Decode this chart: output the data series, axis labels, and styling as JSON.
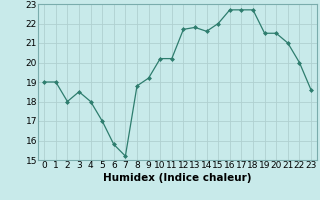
{
  "x": [
    0,
    1,
    2,
    3,
    4,
    5,
    6,
    7,
    8,
    9,
    10,
    11,
    12,
    13,
    14,
    15,
    16,
    17,
    18,
    19,
    20,
    21,
    22,
    23
  ],
  "y": [
    19.0,
    19.0,
    18.0,
    18.5,
    18.0,
    17.0,
    15.8,
    15.2,
    18.8,
    19.2,
    20.2,
    20.2,
    21.7,
    21.8,
    21.6,
    22.0,
    22.7,
    22.7,
    22.7,
    21.5,
    21.5,
    21.0,
    20.0,
    18.6
  ],
  "line_color": "#2e7d6e",
  "marker_color": "#2e7d6e",
  "bg_color": "#c8eaea",
  "grid_color": "#b0d0d0",
  "xlabel": "Humidex (Indice chaleur)",
  "xlim": [
    -0.5,
    23.5
  ],
  "ylim": [
    15,
    23
  ],
  "yticks": [
    15,
    16,
    17,
    18,
    19,
    20,
    21,
    22,
    23
  ],
  "xticks": [
    0,
    1,
    2,
    3,
    4,
    5,
    6,
    7,
    8,
    9,
    10,
    11,
    12,
    13,
    14,
    15,
    16,
    17,
    18,
    19,
    20,
    21,
    22,
    23
  ],
  "xtick_labels": [
    "0",
    "1",
    "2",
    "3",
    "4",
    "5",
    "6",
    "7",
    "8",
    "9",
    "10",
    "11",
    "12",
    "13",
    "14",
    "15",
    "16",
    "17",
    "18",
    "19",
    "20",
    "21",
    "22",
    "23"
  ],
  "font_size": 6.5,
  "xlabel_fontsize": 7.5,
  "xlabel_fontweight": "bold"
}
